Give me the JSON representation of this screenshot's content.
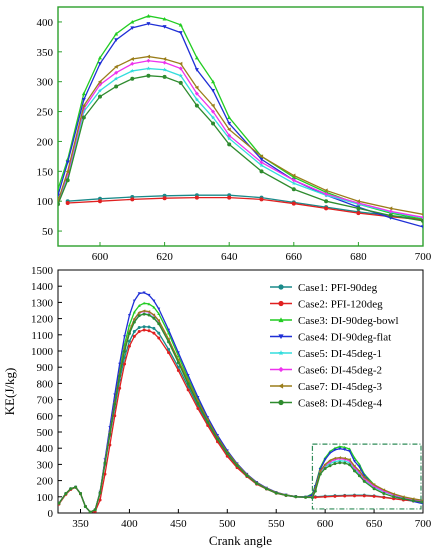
{
  "chart_data": [
    {
      "type": "line",
      "panel": "inset",
      "xlim": [
        587,
        700
      ],
      "ylim": [
        25,
        425
      ],
      "xticks": [
        600,
        620,
        640,
        660,
        680,
        700
      ],
      "yticks": [
        50,
        100,
        150,
        200,
        250,
        300,
        350,
        400
      ],
      "frame_color": "#2ca02c",
      "title": "",
      "xlabel": "",
      "ylabel": ""
    },
    {
      "type": "line",
      "panel": "main",
      "xlabel": "Crank angle",
      "ylabel": "KE(J/kg)",
      "title": "",
      "xlim": [
        327,
        700
      ],
      "ylim": [
        0,
        1500
      ],
      "xticks": [
        350,
        400,
        450,
        500,
        550,
        600,
        650,
        700
      ],
      "yticks": [
        0,
        100,
        200,
        300,
        400,
        500,
        600,
        700,
        800,
        900,
        1000,
        1100,
        1200,
        1300,
        1400,
        1500
      ],
      "legend_position": "top-right",
      "inset_box": {
        "x": [
          587,
          700
        ],
        "y": [
          25,
          425
        ],
        "color": "#2e8b57"
      },
      "series": [
        {
          "name": "Case1: PFI-90deg",
          "color": "#1a8a8a",
          "marker": "circle",
          "x": [
            328,
            335,
            340,
            345,
            350,
            355,
            360,
            365,
            370,
            375,
            380,
            385,
            390,
            395,
            400,
            405,
            410,
            415,
            420,
            425,
            430,
            440,
            450,
            460,
            470,
            480,
            490,
            500,
            510,
            520,
            530,
            540,
            550,
            560,
            570,
            580,
            590,
            600,
            610,
            620,
            630,
            640,
            650,
            660,
            670,
            680,
            690,
            700
          ],
          "y": [
            60,
            120,
            150,
            160,
            120,
            40,
            5,
            20,
            120,
            300,
            480,
            650,
            820,
            960,
            1060,
            1120,
            1145,
            1150,
            1148,
            1140,
            1110,
            1010,
            900,
            780,
            660,
            550,
            450,
            360,
            290,
            230,
            180,
            150,
            125,
            110,
            102,
            98,
            100,
            104,
            107,
            109,
            110,
            110,
            106,
            98,
            90,
            82,
            76,
            70
          ]
        },
        {
          "name": "Case2: PFI-120deg",
          "color": "#e02020",
          "marker": "circle",
          "x": [
            328,
            335,
            340,
            345,
            350,
            355,
            360,
            365,
            370,
            375,
            380,
            385,
            390,
            395,
            400,
            405,
            410,
            415,
            420,
            425,
            430,
            440,
            450,
            460,
            470,
            480,
            490,
            500,
            510,
            520,
            530,
            540,
            550,
            560,
            570,
            580,
            590,
            600,
            610,
            620,
            630,
            640,
            650,
            660,
            670,
            680,
            690,
            700
          ],
          "y": [
            55,
            115,
            145,
            158,
            118,
            40,
            5,
            10,
            80,
            240,
            420,
            600,
            770,
            920,
            1030,
            1090,
            1120,
            1130,
            1125,
            1110,
            1080,
            990,
            880,
            760,
            645,
            540,
            440,
            350,
            280,
            225,
            178,
            148,
            122,
            108,
            100,
            97,
            97,
            100,
            103,
            105,
            106,
            106,
            103,
            96,
            88,
            80,
            74,
            69
          ]
        },
        {
          "name": "Case3: DI-90deg-bowl",
          "color": "#22cc22",
          "marker": "triangle-up",
          "x": [
            328,
            335,
            340,
            345,
            350,
            355,
            360,
            365,
            370,
            375,
            380,
            385,
            390,
            395,
            400,
            405,
            410,
            415,
            420,
            425,
            430,
            440,
            450,
            460,
            470,
            480,
            490,
            500,
            510,
            520,
            530,
            540,
            550,
            560,
            570,
            580,
            587,
            590,
            595,
            600,
            605,
            610,
            615,
            620,
            625,
            630,
            635,
            640,
            650,
            660,
            670,
            680,
            690,
            700
          ],
          "y": [
            60,
            120,
            150,
            160,
            120,
            40,
            5,
            20,
            130,
            320,
            510,
            700,
            880,
            1040,
            1160,
            1240,
            1280,
            1295,
            1290,
            1270,
            1230,
            1110,
            970,
            830,
            700,
            580,
            470,
            380,
            300,
            235,
            185,
            150,
            125,
            110,
            100,
            97,
            120,
            170,
            280,
            340,
            380,
            400,
            410,
            405,
            395,
            340,
            300,
            240,
            175,
            140,
            115,
            95,
            80,
            70
          ]
        },
        {
          "name": "Case4: DI-90deg-flat",
          "color": "#1f2fd6",
          "marker": "triangle-down",
          "x": [
            328,
            335,
            340,
            345,
            350,
            355,
            360,
            365,
            370,
            375,
            380,
            385,
            390,
            395,
            400,
            405,
            410,
            415,
            420,
            425,
            430,
            440,
            450,
            460,
            470,
            480,
            490,
            500,
            510,
            520,
            530,
            540,
            550,
            560,
            570,
            580,
            587,
            590,
            595,
            600,
            605,
            610,
            615,
            620,
            625,
            630,
            635,
            640,
            650,
            660,
            670,
            680,
            690,
            700
          ],
          "y": [
            60,
            120,
            150,
            160,
            120,
            40,
            5,
            20,
            130,
            330,
            530,
            730,
            920,
            1090,
            1220,
            1310,
            1355,
            1360,
            1345,
            1310,
            1260,
            1130,
            990,
            850,
            715,
            590,
            480,
            385,
            305,
            240,
            190,
            155,
            128,
            112,
            102,
            99,
            110,
            165,
            270,
            330,
            370,
            390,
            397,
            392,
            382,
            320,
            285,
            230,
            170,
            135,
            110,
            90,
            72,
            57
          ]
        },
        {
          "name": "Case5: DI-45deg-1",
          "color": "#33dddd",
          "marker": "star",
          "x": [
            328,
            335,
            340,
            345,
            350,
            355,
            360,
            365,
            370,
            375,
            380,
            385,
            390,
            395,
            400,
            405,
            410,
            415,
            420,
            425,
            430,
            440,
            450,
            460,
            470,
            480,
            490,
            500,
            510,
            520,
            530,
            540,
            550,
            560,
            570,
            580,
            587,
            590,
            595,
            600,
            605,
            610,
            615,
            620,
            625,
            630,
            635,
            640,
            650,
            660,
            670,
            680,
            690,
            700
          ],
          "y": [
            60,
            120,
            150,
            160,
            120,
            40,
            5,
            20,
            125,
            310,
            490,
            675,
            850,
            1000,
            1110,
            1180,
            1220,
            1230,
            1225,
            1205,
            1170,
            1060,
            930,
            800,
            680,
            565,
            460,
            370,
            295,
            232,
            183,
            150,
            124,
            110,
            100,
            97,
            98,
            140,
            250,
            285,
            305,
            318,
            322,
            320,
            310,
            270,
            240,
            205,
            160,
            130,
            110,
            95,
            82,
            72
          ]
        },
        {
          "name": "Case6: DI-45deg-2",
          "color": "#ee33ee",
          "marker": "diamond",
          "x": [
            328,
            335,
            340,
            345,
            350,
            355,
            360,
            365,
            370,
            375,
            380,
            385,
            390,
            395,
            400,
            405,
            410,
            415,
            420,
            425,
            430,
            440,
            450,
            460,
            470,
            480,
            490,
            500,
            510,
            520,
            530,
            540,
            550,
            560,
            570,
            580,
            587,
            590,
            595,
            600,
            605,
            610,
            615,
            620,
            625,
            630,
            635,
            640,
            650,
            660,
            670,
            680,
            690,
            700
          ],
          "y": [
            60,
            120,
            150,
            160,
            120,
            40,
            5,
            20,
            125,
            312,
            495,
            680,
            858,
            1010,
            1120,
            1195,
            1235,
            1245,
            1240,
            1220,
            1185,
            1070,
            940,
            810,
            685,
            570,
            462,
            372,
            297,
            234,
            184,
            151,
            125,
            110,
            100,
            97,
            100,
            145,
            255,
            295,
            315,
            330,
            335,
            332,
            322,
            280,
            250,
            210,
            165,
            135,
            112,
            97,
            83,
            73
          ]
        },
        {
          "name": "Case7: DI-45deg-3",
          "color": "#9a7d1a",
          "marker": "triangle-left",
          "x": [
            328,
            335,
            340,
            345,
            350,
            355,
            360,
            365,
            370,
            375,
            380,
            385,
            390,
            395,
            400,
            405,
            410,
            415,
            420,
            425,
            430,
            440,
            450,
            460,
            470,
            480,
            490,
            500,
            510,
            520,
            530,
            540,
            550,
            560,
            570,
            580,
            587,
            590,
            595,
            600,
            605,
            610,
            615,
            620,
            625,
            630,
            635,
            640,
            650,
            660,
            670,
            680,
            690,
            700
          ],
          "y": [
            60,
            120,
            150,
            160,
            120,
            40,
            5,
            20,
            125,
            312,
            495,
            682,
            860,
            1012,
            1122,
            1198,
            1238,
            1248,
            1243,
            1223,
            1188,
            1074,
            944,
            814,
            690,
            575,
            466,
            376,
            300,
            236,
            186,
            152,
            126,
            111,
            101,
            98,
            100,
            150,
            260,
            300,
            325,
            338,
            342,
            338,
            330,
            290,
            260,
            220,
            175,
            143,
            118,
            100,
            88,
            78
          ]
        },
        {
          "name": "Case8: DI-45deg-4",
          "color": "#2e8b2e",
          "marker": "circle",
          "x": [
            328,
            335,
            340,
            345,
            350,
            355,
            360,
            365,
            370,
            375,
            380,
            385,
            390,
            395,
            400,
            405,
            410,
            415,
            420,
            425,
            430,
            440,
            450,
            460,
            470,
            480,
            490,
            500,
            510,
            520,
            530,
            540,
            550,
            560,
            570,
            580,
            587,
            590,
            595,
            600,
            605,
            610,
            615,
            620,
            625,
            630,
            635,
            640,
            650,
            660,
            670,
            680,
            690,
            700
          ],
          "y": [
            60,
            120,
            150,
            160,
            120,
            40,
            5,
            20,
            125,
            308,
            488,
            672,
            848,
            998,
            1108,
            1178,
            1218,
            1228,
            1222,
            1202,
            1168,
            1056,
            928,
            798,
            676,
            562,
            457,
            368,
            293,
            231,
            182,
            149,
            123,
            109,
            100,
            97,
            95,
            135,
            240,
            275,
            292,
            305,
            310,
            308,
            298,
            260,
            230,
            195,
            150,
            120,
            100,
            88,
            76,
            67
          ]
        }
      ]
    }
  ]
}
